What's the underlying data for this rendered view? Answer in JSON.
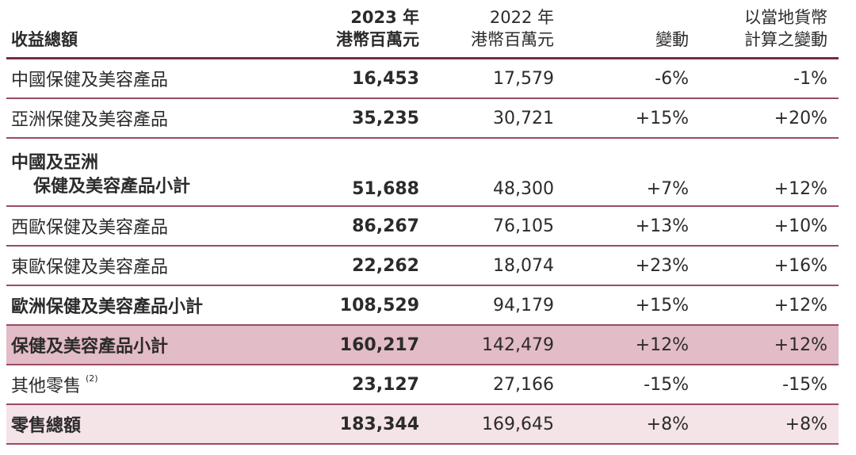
{
  "header": {
    "label": "收益總額",
    "col_2023_year": "2023 年",
    "col_2023_unit": "港幣百萬元",
    "col_2022_year": "2022 年",
    "col_2022_unit": "港幣百萬元",
    "col_change": "變動",
    "col_local_line1": "以當地貨幣",
    "col_local_line2": "計算之變動"
  },
  "rows": [
    {
      "label": "中國保健及美容產品",
      "v2023": "16,453",
      "v2022": "17,579",
      "change": "-6%",
      "local": "-1%"
    },
    {
      "label": "亞洲保健及美容產品",
      "v2023": "35,235",
      "v2022": "30,721",
      "change": "+15%",
      "local": "+20%"
    },
    {
      "label_line1": "中國及亞洲",
      "label_line2": "保健及美容產品小計",
      "v2023": "51,688",
      "v2022": "48,300",
      "change": "+7%",
      "local": "+12%"
    },
    {
      "label": "西歐保健及美容產品",
      "v2023": "86,267",
      "v2022": "76,105",
      "change": "+13%",
      "local": "+10%"
    },
    {
      "label": "東歐保健及美容產品",
      "v2023": "22,262",
      "v2022": "18,074",
      "change": "+23%",
      "local": "+16%"
    },
    {
      "label": "歐洲保健及美容產品小計",
      "v2023": "108,529",
      "v2022": "94,179",
      "change": "+15%",
      "local": "+12%"
    },
    {
      "label": "保健及美容產品小計",
      "v2023": "160,217",
      "v2022": "142,479",
      "change": "+12%",
      "local": "+12%"
    },
    {
      "label": "其他零售",
      "note": "(2)",
      "v2023": "23,127",
      "v2022": "27,166",
      "change": "-15%",
      "local": "-15%"
    },
    {
      "label": "零售總額",
      "v2023": "183,344",
      "v2022": "169,645",
      "change": "+8%",
      "local": "+8%"
    }
  ],
  "colors": {
    "rule": "#7a2a47",
    "highlight_dark": "#e2bcc6",
    "highlight_light": "#f4e3e7"
  }
}
